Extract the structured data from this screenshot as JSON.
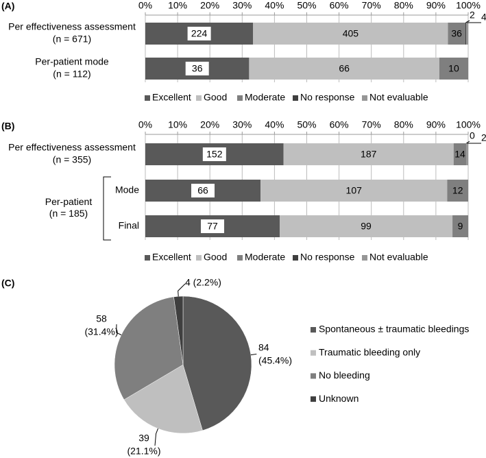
{
  "chart_data": [
    {
      "type": "bar",
      "panel": "(A)",
      "stacked": "percent",
      "categories": [
        [
          "Per effectiveness assessment",
          "(n = 671)"
        ],
        [
          "Per-patient  mode",
          "(n = 112)"
        ]
      ],
      "series": [
        {
          "name": "Excellent",
          "color": "#595959",
          "values": [
            224,
            36
          ]
        },
        {
          "name": "Good",
          "color": "#bfbfbf",
          "values": [
            405,
            66
          ]
        },
        {
          "name": "Moderate",
          "color": "#7f7f7f",
          "values": [
            36,
            10
          ]
        },
        {
          "name": "No response",
          "color": "#3f3f3f",
          "values": [
            2,
            null
          ]
        },
        {
          "name": "Not evaluable",
          "color": "#969696",
          "values": [
            4,
            null
          ]
        }
      ],
      "xlim": [
        0,
        100
      ],
      "xticks": [
        {
          "value": 0,
          "label": "0%"
        },
        {
          "value": 10,
          "label": "10%"
        },
        {
          "value": 20,
          "label": "20%"
        },
        {
          "value": 30,
          "label": "30%"
        },
        {
          "value": 40,
          "label": "40%"
        },
        {
          "value": 50,
          "label": "50%"
        },
        {
          "value": 60,
          "label": "60%"
        },
        {
          "value": 70,
          "label": "70%"
        },
        {
          "value": 80,
          "label": "80%"
        },
        {
          "value": 90,
          "label": "90%"
        },
        {
          "value": 100,
          "label": "100%"
        }
      ],
      "grid": true,
      "legend": "bottom"
    },
    {
      "type": "bar",
      "panel": "(B)",
      "stacked": "percent",
      "categories": [
        [
          "Per effectiveness assessment",
          "(n = 355)"
        ],
        [
          "Mode"
        ],
        [
          "Final"
        ]
      ],
      "group": {
        "label": [
          "Per-patient",
          "(n = 185)"
        ]
      },
      "series": [
        {
          "name": "Excellent",
          "color": "#595959",
          "values": [
            152,
            66,
            77
          ]
        },
        {
          "name": "Good",
          "color": "#bfbfbf",
          "values": [
            187,
            107,
            99
          ]
        },
        {
          "name": "Moderate",
          "color": "#7f7f7f",
          "values": [
            14,
            12,
            9
          ]
        },
        {
          "name": "No response",
          "color": "#3f3f3f",
          "values": [
            0,
            null,
            null
          ]
        },
        {
          "name": "Not evaluable",
          "color": "#969696",
          "values": [
            2,
            null,
            null
          ]
        }
      ],
      "xlim": [
        0,
        100
      ],
      "xticks": [
        {
          "value": 0,
          "label": "0%"
        },
        {
          "value": 10,
          "label": "10%"
        },
        {
          "value": 20,
          "label": "20%"
        },
        {
          "value": 30,
          "label": "30%"
        },
        {
          "value": 40,
          "label": "40%"
        },
        {
          "value": 50,
          "label": "50%"
        },
        {
          "value": 60,
          "label": "60%"
        },
        {
          "value": 70,
          "label": "70%"
        },
        {
          "value": 80,
          "label": "80%"
        },
        {
          "value": 90,
          "label": "90%"
        },
        {
          "value": 100,
          "label": "100%"
        }
      ],
      "grid": true,
      "legend": "bottom"
    },
    {
      "type": "pie",
      "panel": "(C)",
      "categories": [
        "Spontaneous ± traumatic bleedings",
        "Traumatic bleeding only",
        "No bleeding",
        "Unknown"
      ],
      "values": [
        84,
        39,
        58,
        4
      ],
      "value_labels": [
        [
          "84",
          "(45.4%)"
        ],
        [
          "39",
          "(21.1%)"
        ],
        [
          "58",
          "(31.4%)"
        ],
        [
          "4 (2.2%)"
        ]
      ],
      "colors": [
        "#595959",
        "#bfbfbf",
        "#7f7f7f",
        "#3f3f3f"
      ],
      "legend": "right"
    }
  ]
}
